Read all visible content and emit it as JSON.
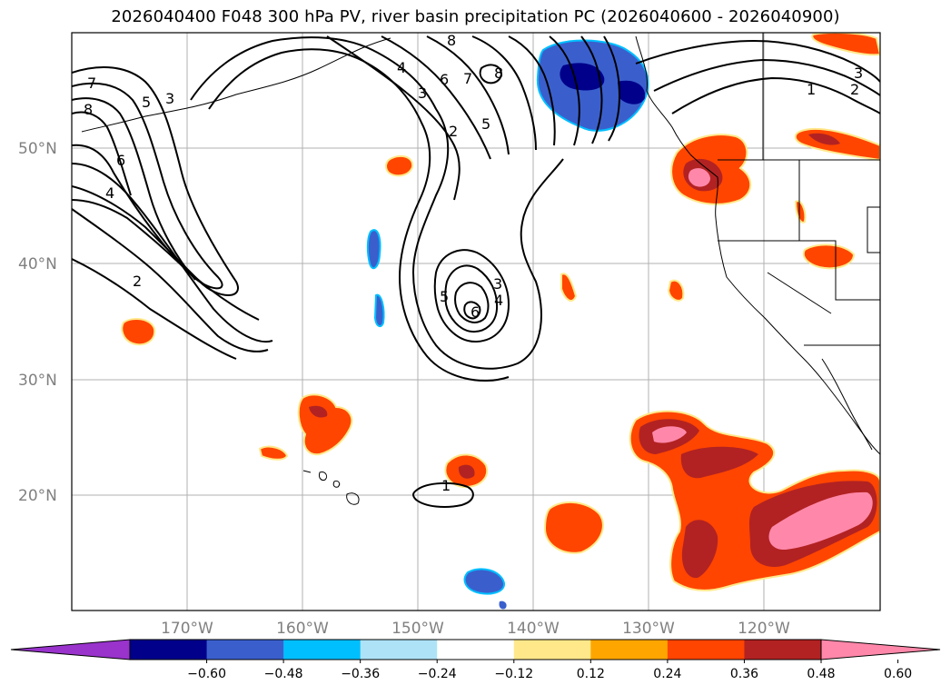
{
  "title": "2026040400 F048 300 hPa PV, river basin precipitation PC (2026040600 - 2026040900)",
  "lat_ticks": [
    "50°N",
    "40°N",
    "30°N",
    "20°N"
  ],
  "lon_ticks": [
    "170°W",
    "160°W",
    "150°W",
    "140°W",
    "130°W",
    "120°W"
  ],
  "colorbar": {
    "colors": [
      "#9933cc",
      "#00008b",
      "#3a5fcd",
      "#00bfff",
      "#aee2f7",
      "#ffffff",
      "#ffe88a",
      "#ffa500",
      "#ff4500",
      "#b22222",
      "#ff88aa"
    ],
    "labels": [
      "−0.60",
      "−0.48",
      "−0.36",
      "−0.24",
      "−0.12",
      "0.12",
      "0.24",
      "0.36",
      "0.48",
      "0.60"
    ]
  },
  "pv_contour_labels": [
    "7",
    "8",
    "5",
    "3",
    "6",
    "4",
    "2",
    "4",
    "3",
    "6",
    "7",
    "8",
    "2",
    "5",
    "8",
    "5",
    "3",
    "4",
    "6",
    "1",
    "1",
    "2",
    "3"
  ]
}
